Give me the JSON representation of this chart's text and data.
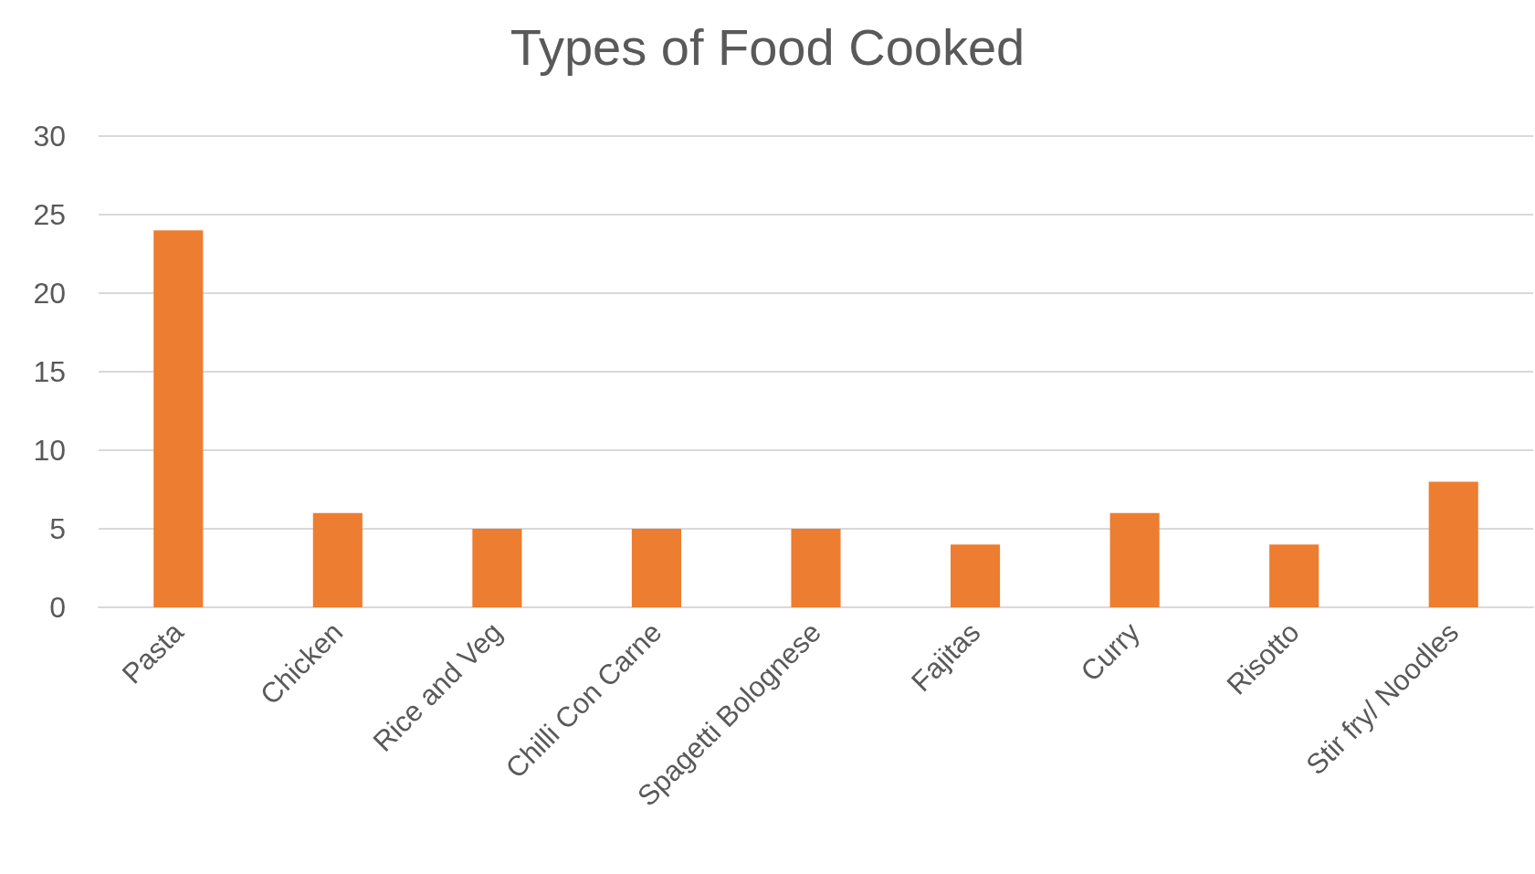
{
  "chart_data": {
    "type": "bar",
    "title": "Types of Food Cooked",
    "categories": [
      "Pasta",
      "Chicken",
      "Rice and Veg",
      "Chilli Con Carne",
      "Spagetti Bolognese",
      "Fajitas",
      "Curry",
      "Risotto",
      "Stir fry/ Noodles"
    ],
    "values": [
      24,
      6,
      5,
      5,
      5,
      4,
      6,
      4,
      8
    ],
    "color": "#ed7d31",
    "ylim": [
      0,
      30
    ],
    "yticks": [
      0,
      5,
      10,
      15,
      20,
      25,
      30
    ],
    "grid": "y"
  }
}
